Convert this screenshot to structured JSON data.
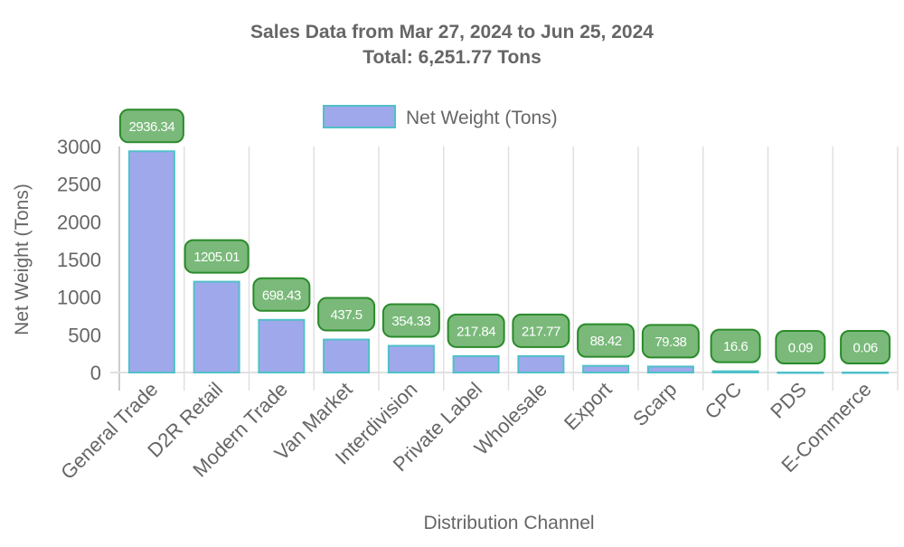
{
  "chart_data": {
    "type": "bar",
    "title": "Sales Data from Mar 27, 2024 to Jun 25, 2024",
    "subtitle": "Total: 6,251.77 Tons",
    "xlabel": "Distribution Channel",
    "ylabel": "Net Weight (Tons)",
    "ylim": [
      0,
      3000
    ],
    "yticks": [
      0,
      500,
      1000,
      1500,
      2000,
      2500,
      3000
    ],
    "legend": {
      "position": "top",
      "entries": [
        "Net Weight (Tons)"
      ]
    },
    "grid": "vertical",
    "categories": [
      "General Trade",
      "D2R Retail",
      "Modern Trade",
      "Van Market",
      "Interdivision",
      "Private Label",
      "Wholesale",
      "Export",
      "Scarp",
      "CPC",
      "PDS",
      "E-Commerce"
    ],
    "series": [
      {
        "name": "Net Weight (Tons)",
        "values": [
          2936.34,
          1205.01,
          698.43,
          437.5,
          354.33,
          217.84,
          217.77,
          88.42,
          79.38,
          16.6,
          0.09,
          0.06
        ],
        "labels": [
          "2936.34",
          "1205.01",
          "698.43",
          "437.5",
          "354.33",
          "217.84",
          "217.77",
          "88.42",
          "79.38",
          "16.6",
          "0.09",
          "0.06"
        ]
      }
    ],
    "colors": {
      "bar_fill": "#a0a8ec",
      "bar_border": "#4fc0c8",
      "label_fill": "#7ab97a",
      "label_border": "#2a8a2a",
      "label_text": "#ffffff",
      "text": "#666666",
      "grid": "#e0e0e0"
    }
  }
}
